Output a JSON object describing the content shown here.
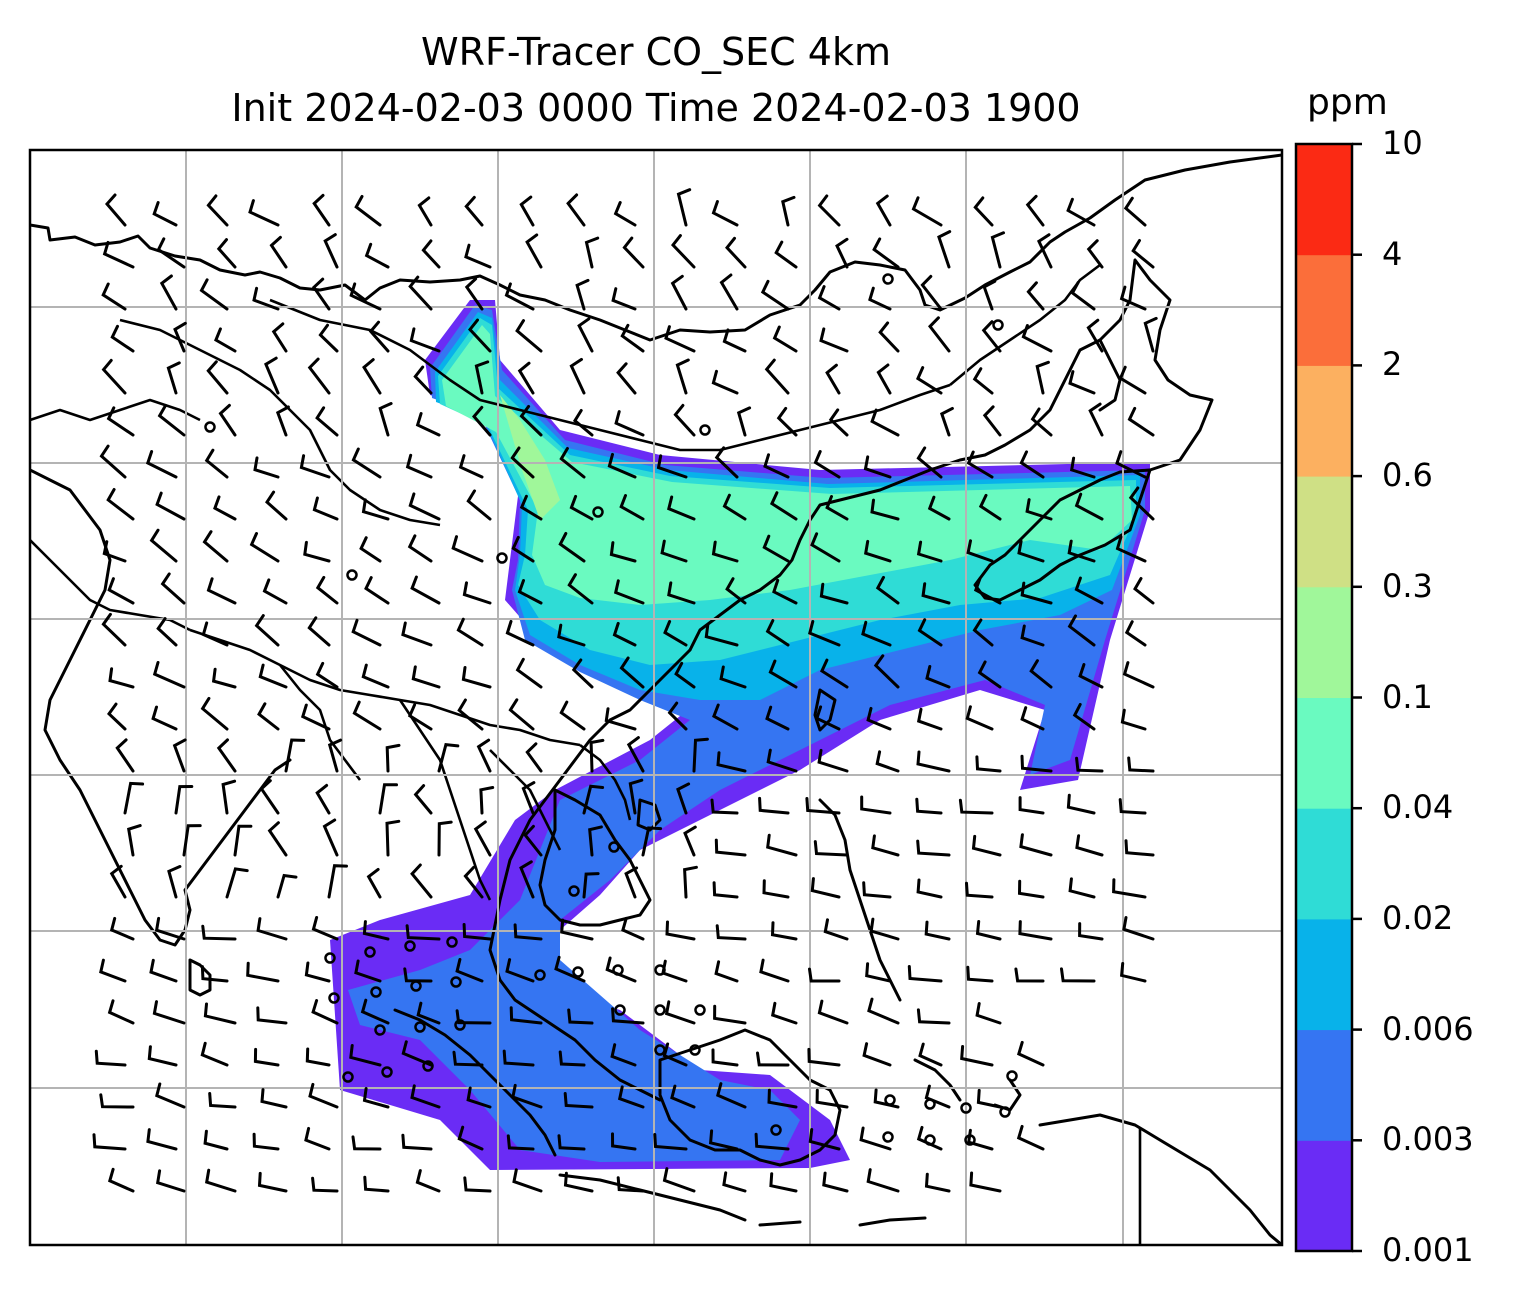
{
  "title": {
    "line1": "WRF-Tracer CO_SEC 4km",
    "line2": "Init 2024-02-03 0000 Time 2024-02-03 1900"
  },
  "colorbar": {
    "unit": "ppm",
    "ticks": [
      "0.001",
      "0.003",
      "0.006",
      "0.02",
      "0.04",
      "0.1",
      "0.3",
      "0.6",
      "2",
      "4",
      "10"
    ],
    "colors": [
      "#6a2cf5",
      "#3575f2",
      "#08b2ea",
      "#2fdcd6",
      "#6afac0",
      "#a0f79a",
      "#cfe085",
      "#fcb060",
      "#fb6e3a",
      "#fb2a14"
    ]
  },
  "map": {
    "gridlines": "on",
    "field": "CO_SEC tracer concentration (ppm)",
    "overlays": [
      "coastlines",
      "country borders",
      "wind barbs"
    ]
  }
}
